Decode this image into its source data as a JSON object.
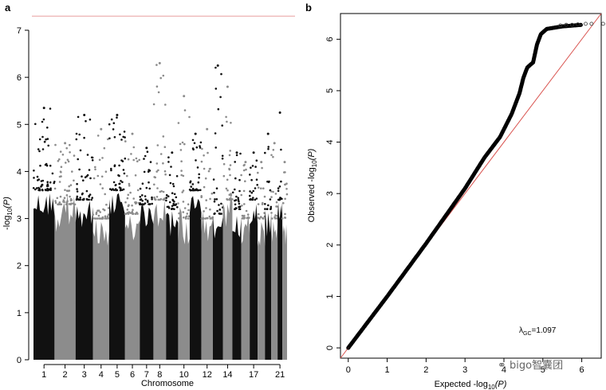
{
  "panels": [
    {
      "id": "a",
      "label": "a",
      "chart_data": {
        "type": "scatter",
        "subtype": "manhattan",
        "title": "",
        "xlabel": "Chromosome",
        "ylabel_base": "-log",
        "ylabel_sub": "10",
        "ylabel_arg": "(P)",
        "ylim": [
          0,
          7
        ],
        "yticks": [
          0,
          1,
          2,
          3,
          4,
          5,
          6,
          7
        ],
        "xtick_labels": [
          "1",
          "2",
          "3",
          "4",
          "5",
          "6",
          "7",
          "8",
          "10",
          "12",
          "14",
          "17",
          "21"
        ],
        "significance_line": 7.3,
        "series": [
          {
            "name": "",
            "color": "#111111"
          },
          {
            "name": "",
            "color": "#8c8c8c"
          }
        ],
        "chromosomes": [
          {
            "chr": 1,
            "span": 8.0,
            "base": 3.6,
            "top": 5.35
          },
          {
            "chr": 2,
            "span": 8.0,
            "base": 3.3,
            "top": 4.6
          },
          {
            "chr": 3,
            "span": 6.6,
            "base": 3.4,
            "top": 5.2
          },
          {
            "chr": 4,
            "span": 6.2,
            "base": 3.0,
            "top": 4.9
          },
          {
            "chr": 5,
            "span": 6.0,
            "base": 3.6,
            "top": 5.2
          },
          {
            "chr": 6,
            "span": 5.6,
            "base": 3.1,
            "top": 4.8
          },
          {
            "chr": 7,
            "span": 5.2,
            "base": 3.3,
            "top": 4.5
          },
          {
            "chr": 8,
            "span": 4.8,
            "base": 3.4,
            "top": 6.3
          },
          {
            "chr": 9,
            "span": 4.6,
            "base": 3.2,
            "top": 4.4
          },
          {
            "chr": 10,
            "span": 4.4,
            "base": 3.0,
            "top": 5.6
          },
          {
            "chr": 11,
            "span": 4.4,
            "base": 3.6,
            "top": 4.8
          },
          {
            "chr": 12,
            "span": 4.4,
            "base": 3.0,
            "top": 4.9
          },
          {
            "chr": 13,
            "span": 3.8,
            "base": 3.1,
            "top": 6.25
          },
          {
            "chr": 14,
            "span": 3.6,
            "base": 3.4,
            "top": 5.8
          },
          {
            "chr": 15,
            "span": 3.4,
            "base": 3.2,
            "top": 4.4
          },
          {
            "chr": 16,
            "span": 3.2,
            "base": 3.0,
            "top": 4.2
          },
          {
            "chr": 17,
            "span": 3.0,
            "base": 3.4,
            "top": 4.4
          },
          {
            "chr": 18,
            "span": 2.8,
            "base": 3.0,
            "top": 4.2
          },
          {
            "chr": 19,
            "span": 2.4,
            "base": 3.2,
            "top": 4.8
          },
          {
            "chr": 20,
            "span": 2.4,
            "base": 3.0,
            "top": 4.6
          },
          {
            "chr": 21,
            "span": 1.8,
            "base": 3.4,
            "top": 5.25
          },
          {
            "chr": 22,
            "span": 1.8,
            "base": 3.0,
            "top": 4.2
          }
        ],
        "grid": false,
        "legend": "none"
      }
    },
    {
      "id": "b",
      "label": "b",
      "chart_data": {
        "type": "scatter",
        "subtype": "qq",
        "title": "",
        "xlabel_base": "Expected -log",
        "xlabel_sub": "10",
        "xlabel_arg": "(P)",
        "ylabel_base": "Observed -log",
        "ylabel_sub": "10",
        "ylabel_arg": "(P)",
        "xlim": [
          -0.2,
          6.5
        ],
        "ylim": [
          -0.2,
          6.5
        ],
        "xticks": [
          0,
          1,
          2,
          3,
          4,
          5,
          6
        ],
        "yticks": [
          0,
          1,
          2,
          3,
          4,
          5,
          6
        ],
        "reference_line": "y = x",
        "reference_color": "#d9534f",
        "points_color": "#000000",
        "curve": [
          [
            0.0,
            0.0
          ],
          [
            1.0,
            1.0
          ],
          [
            2.0,
            2.03
          ],
          [
            3.0,
            3.1
          ],
          [
            3.5,
            3.7
          ],
          [
            3.9,
            4.1
          ],
          [
            4.2,
            4.55
          ],
          [
            4.4,
            4.95
          ],
          [
            4.5,
            5.25
          ],
          [
            4.6,
            5.45
          ],
          [
            4.75,
            5.55
          ],
          [
            4.85,
            5.9
          ],
          [
            4.95,
            6.1
          ],
          [
            5.1,
            6.2
          ],
          [
            5.5,
            6.25
          ],
          [
            6.0,
            6.28
          ]
        ],
        "outliers": [
          [
            5.45,
            6.27
          ],
          [
            5.6,
            6.28
          ],
          [
            5.75,
            6.28
          ],
          [
            5.9,
            6.29
          ],
          [
            6.1,
            6.3
          ],
          [
            6.25,
            6.3
          ],
          [
            6.55,
            6.3
          ]
        ],
        "annotation_symbol": "λ",
        "annotation_sub": "GC",
        "annotation_value": "=1.097",
        "grid": false,
        "legend": "none"
      }
    }
  ],
  "watermark": "⚭ bigo智囊团"
}
